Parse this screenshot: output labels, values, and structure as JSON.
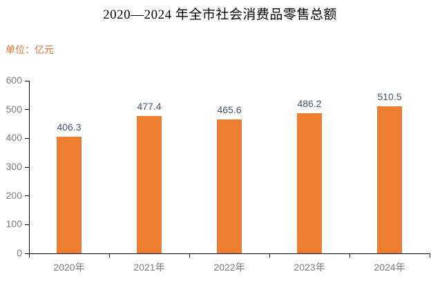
{
  "page": {
    "background": "#ffffff"
  },
  "chart_data": {
    "type": "bar",
    "title": "2020—2024 年全市社会消费品零售总额",
    "unit_label": "单位：亿元",
    "categories": [
      "2020年",
      "2021年",
      "2022年",
      "2023年",
      "2024年"
    ],
    "values": [
      406.3,
      477.4,
      465.6,
      486.2,
      510.5
    ],
    "value_labels": [
      "406.3",
      "477.4",
      "465.6",
      "486.2",
      "510.5"
    ],
    "xlabel": "",
    "ylabel": "",
    "ylim": [
      0,
      600
    ],
    "yticks": [
      0,
      100,
      200,
      300,
      400,
      500,
      600
    ],
    "grid": "off",
    "legend": "none",
    "data_labels": "above-bars",
    "colors": {
      "bar": "#ED7D31",
      "value_label": "#44546A",
      "axis_label": "#7F7C78",
      "unit_label": "#E0702F",
      "axis_line": "#000000",
      "title": "#000000"
    }
  }
}
